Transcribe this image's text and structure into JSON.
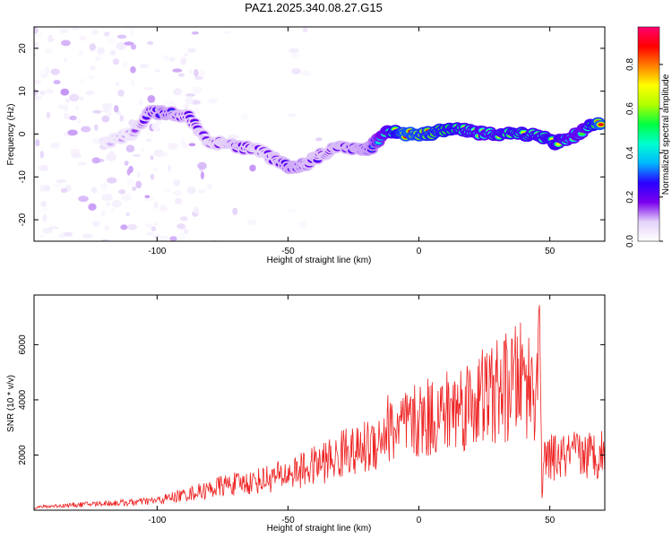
{
  "title": "PAZ1.2025.340.08.27.G15",
  "chart_data": [
    {
      "type": "heatmap",
      "name": "spectrogram",
      "xlabel": "Height of straight line (km)",
      "ylabel": "Frequency (Hz)",
      "xlim": [
        -147,
        71
      ],
      "ylim": [
        -25,
        25
      ],
      "xticks": [
        -100,
        -50,
        0,
        50
      ],
      "yticks": [
        -20,
        -10,
        0,
        10,
        20
      ],
      "colorbar": {
        "label": "Normalized spectral amplitude",
        "range": [
          0,
          0.97
        ],
        "ticks": [
          0.0,
          0.2,
          0.4,
          0.6,
          0.8
        ],
        "tick_labels": [
          "0.0",
          "0.2",
          "0.4",
          "0.6",
          "0.8"
        ],
        "colormap": [
          "#ffffff",
          "#e4d2fa",
          "#7a00ee",
          "#2a00ff",
          "#00b7ff",
          "#00ffd0",
          "#00ff40",
          "#b0ff00",
          "#ffff00",
          "#ff8000",
          "#ff0000",
          "#ff0070"
        ]
      },
      "signal_track": {
        "description": "main frequency track (Hz) vs height (km) with normalized amplitude",
        "points": [
          {
            "x": -120,
            "y": -2,
            "a": 0.1
          },
          {
            "x": -110,
            "y": 0,
            "a": 0.12
          },
          {
            "x": -103,
            "y": 5,
            "a": 0.28
          },
          {
            "x": -95,
            "y": 5,
            "a": 0.3
          },
          {
            "x": -88,
            "y": 4,
            "a": 0.26
          },
          {
            "x": -80,
            "y": -2,
            "a": 0.22
          },
          {
            "x": -75,
            "y": -2,
            "a": 0.25
          },
          {
            "x": -68,
            "y": -3,
            "a": 0.27
          },
          {
            "x": -60,
            "y": -4,
            "a": 0.24
          },
          {
            "x": -55,
            "y": -6,
            "a": 0.26
          },
          {
            "x": -48,
            "y": -8,
            "a": 0.3
          },
          {
            "x": -43,
            "y": -7,
            "a": 0.28
          },
          {
            "x": -38,
            "y": -5,
            "a": 0.26
          },
          {
            "x": -30,
            "y": -3,
            "a": 0.28
          },
          {
            "x": -22,
            "y": -4,
            "a": 0.3
          },
          {
            "x": -18,
            "y": -3,
            "a": 0.32
          },
          {
            "x": -12,
            "y": 1,
            "a": 0.6
          },
          {
            "x": -5,
            "y": 0,
            "a": 0.88
          },
          {
            "x": 3,
            "y": 0,
            "a": 0.82
          },
          {
            "x": 10,
            "y": 1,
            "a": 0.78
          },
          {
            "x": 18,
            "y": 1,
            "a": 0.66
          },
          {
            "x": 25,
            "y": 0,
            "a": 0.62
          },
          {
            "x": 35,
            "y": 0,
            "a": 0.7
          },
          {
            "x": 45,
            "y": 0,
            "a": 0.66
          },
          {
            "x": 52,
            "y": -2,
            "a": 0.7
          },
          {
            "x": 58,
            "y": -1,
            "a": 0.6
          },
          {
            "x": 63,
            "y": 1,
            "a": 0.55
          },
          {
            "x": 70,
            "y": 3,
            "a": 0.92
          }
        ]
      }
    },
    {
      "type": "line",
      "name": "snr",
      "xlabel": "Height of straight line (km)",
      "ylabel": "SNR (10 * v/v)",
      "xlim": [
        -147,
        71
      ],
      "ylim": [
        0,
        7800
      ],
      "xticks": [
        -100,
        -50,
        0,
        50
      ],
      "yticks": [
        2000,
        4000,
        6000
      ],
      "color": "#ee2222",
      "series": [
        {
          "name": "SNR",
          "x": [
            -147,
            -140,
            -130,
            -120,
            -110,
            -100,
            -90,
            -85,
            -80,
            -75,
            -70,
            -65,
            -60,
            -55,
            -50,
            -45,
            -40,
            -35,
            -30,
            -27,
            -25,
            -20,
            -15,
            -12,
            -10,
            -5,
            0,
            5,
            10,
            15,
            20,
            25,
            30,
            35,
            38,
            40,
            42,
            44,
            45,
            46,
            47,
            48,
            50,
            55,
            60,
            65,
            71
          ],
          "y": [
            100,
            150,
            200,
            250,
            280,
            350,
            550,
            650,
            750,
            900,
            950,
            1000,
            1100,
            1200,
            1300,
            1450,
            1600,
            1800,
            1900,
            2500,
            2000,
            2300,
            2600,
            3000,
            2900,
            3000,
            3200,
            3400,
            3500,
            3800,
            3900,
            4100,
            4300,
            4500,
            4700,
            4800,
            4600,
            4400,
            4900,
            7800,
            600,
            1800,
            1900,
            1900,
            2000,
            2000,
            2100
          ]
        }
      ]
    }
  ]
}
